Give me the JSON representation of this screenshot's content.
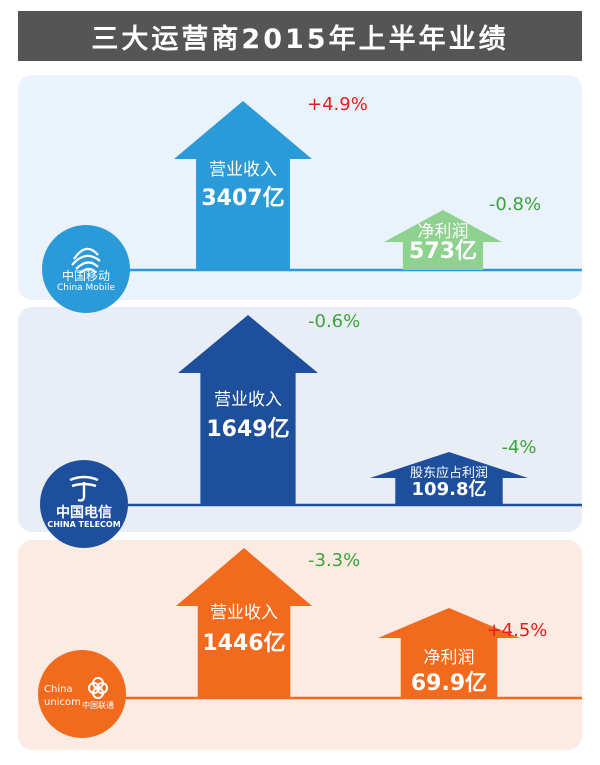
{
  "title": "三大运营商2015年上半年业绩",
  "colors": {
    "mobile_panel": "#eaf3fb",
    "telecom_panel": "#e9eef6",
    "unicom_panel": "#fcebe3",
    "positive_change": "#e02020",
    "negative_change": "#3aa43a"
  },
  "logos": {
    "china_mobile": {
      "zh": "中国移动",
      "en": "China Mobile",
      "icon": "china-mobile-swirl-icon",
      "color": "#2a9bd8"
    },
    "china_telecom": {
      "zh": "中国电信",
      "en": "CHINA TELECOM",
      "icon": "china-telecom-wave-icon",
      "color": "#1e4f9c"
    },
    "china_unicom": {
      "zh": "中国联通",
      "en_line1": "China",
      "en_line2": "unicom",
      "icon": "china-unicom-knot-icon",
      "color": "#f26a1d"
    }
  },
  "chart_data": [
    {
      "type": "bar",
      "company": "中国移动",
      "color": "#2a9bd8",
      "categories": [
        "营业收入",
        "净利润"
      ],
      "values": [
        3407,
        573
      ],
      "value_labels": [
        "3407亿",
        "573亿"
      ],
      "changes": [
        "+4.9%",
        "-0.8%"
      ],
      "profit_style": {
        "fill": "#8fd18f",
        "text": "#ffffff"
      }
    },
    {
      "type": "bar",
      "company": "中国电信",
      "color": "#1e4f9c",
      "categories": [
        "营业收入",
        "股东应占利润"
      ],
      "values": [
        1649,
        109.8
      ],
      "value_labels": [
        "1649亿",
        "109.8亿"
      ],
      "changes": [
        "-0.6%",
        "-4%"
      ],
      "profit_style": {
        "fill": "#1e4f9c",
        "text": "#ffffff"
      }
    },
    {
      "type": "bar",
      "company": "中国联通",
      "color": "#f26a1d",
      "categories": [
        "营业收入",
        "净利润"
      ],
      "values": [
        1446,
        69.9
      ],
      "value_labels": [
        "1446亿",
        "69.9亿"
      ],
      "changes": [
        "-3.3%",
        "+4.5%"
      ],
      "profit_style": {
        "fill": "#f26a1d",
        "text": "#ffffff"
      }
    }
  ]
}
